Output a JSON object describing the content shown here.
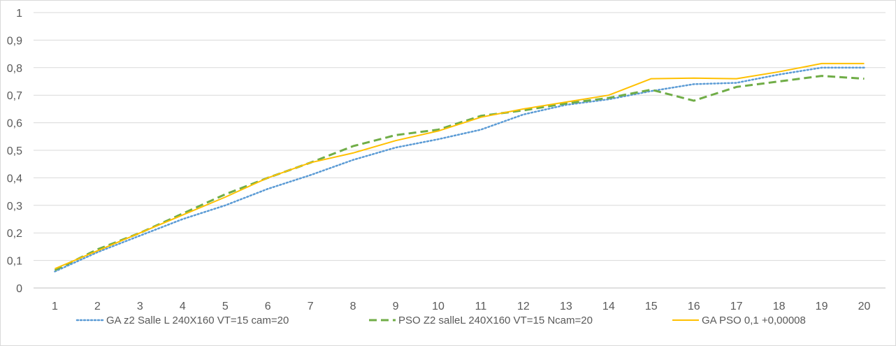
{
  "chart_data": {
    "type": "line",
    "title": "",
    "xlabel": "",
    "ylabel": "",
    "categories": [
      "1",
      "2",
      "3",
      "4",
      "5",
      "6",
      "7",
      "8",
      "9",
      "10",
      "11",
      "12",
      "13",
      "14",
      "15",
      "16",
      "17",
      "18",
      "19",
      "20"
    ],
    "y_ticks": [
      "0",
      "0,1",
      "0,2",
      "0,3",
      "0,4",
      "0,5",
      "0,6",
      "0,7",
      "0,8",
      "0,9",
      "1"
    ],
    "ylim": [
      0,
      1
    ],
    "grid": true,
    "legend_position": "bottom",
    "series": [
      {
        "name": "GA  z2 Salle L 240X160 VT=15 cam=20",
        "style": "dotted",
        "color": "#5b9bd5",
        "values": [
          0.06,
          0.13,
          0.19,
          0.25,
          0.3,
          0.36,
          0.41,
          0.465,
          0.51,
          0.54,
          0.575,
          0.63,
          0.665,
          0.685,
          0.715,
          0.74,
          0.745,
          0.775,
          0.8,
          0.8
        ]
      },
      {
        "name": "PSO Z2 salleL 240X160 VT=15 Ncam=20",
        "style": "dashed",
        "color": "#70ad47",
        "values": [
          0.065,
          0.14,
          0.2,
          0.27,
          0.34,
          0.4,
          0.455,
          0.515,
          0.555,
          0.575,
          0.625,
          0.645,
          0.67,
          0.69,
          0.72,
          0.68,
          0.73,
          0.75,
          0.77,
          0.76
        ]
      },
      {
        "name": "GA PSO 0,1 +0,00008",
        "style": "solid",
        "color": "#ffc000",
        "values": [
          0.07,
          0.135,
          0.2,
          0.265,
          0.33,
          0.4,
          0.455,
          0.49,
          0.535,
          0.57,
          0.62,
          0.65,
          0.675,
          0.7,
          0.76,
          0.762,
          0.76,
          0.785,
          0.815,
          0.815
        ]
      }
    ]
  }
}
